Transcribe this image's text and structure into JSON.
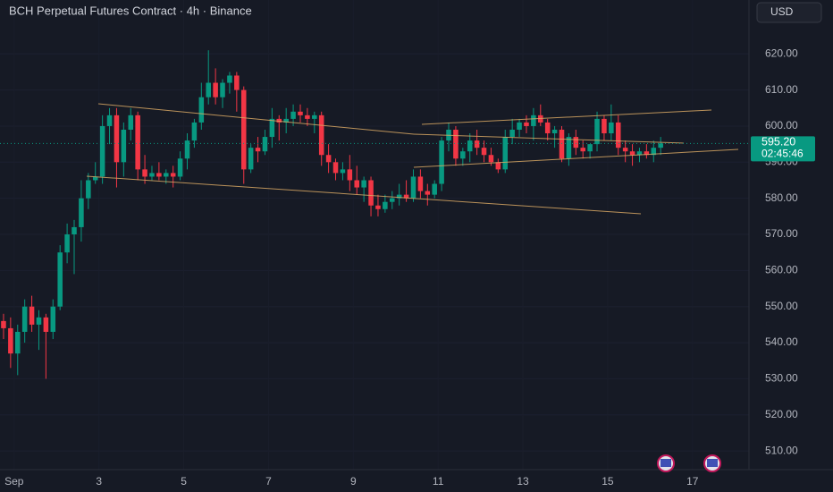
{
  "chart_data": {
    "type": "candlestick",
    "title": "BCH Perpetual Futures Contract · 4h · Binance",
    "currency": "USD",
    "up_color": "#089981",
    "down_color": "#f23645",
    "open": [
      546,
      544,
      537,
      543,
      550,
      545,
      547,
      543,
      550,
      565,
      570,
      572,
      580,
      585,
      586,
      600,
      603,
      590,
      599,
      603,
      588,
      586,
      587,
      586,
      587,
      586,
      591,
      596,
      601,
      608,
      612,
      608,
      612,
      614,
      610,
      588,
      594,
      593,
      597,
      602,
      601,
      602,
      604,
      603,
      602,
      603,
      592,
      590,
      587,
      588,
      585,
      583,
      585,
      578,
      577,
      579,
      580,
      581,
      580,
      586,
      582,
      581,
      584,
      596,
      599,
      591,
      593,
      596,
      594,
      592,
      590,
      588,
      597,
      599,
      601,
      600,
      603,
      601,
      598,
      599,
      591,
      597,
      594,
      593,
      595,
      602,
      598,
      601,
      594,
      593,
      592,
      593,
      592,
      594
    ],
    "high": [
      548,
      547,
      545,
      552,
      553,
      549,
      548,
      552,
      567,
      573,
      574,
      585,
      587,
      590,
      603,
      605,
      605,
      601,
      605,
      604,
      592,
      589,
      590,
      588,
      589,
      593,
      598,
      602,
      612,
      621,
      616,
      613,
      615,
      615,
      611,
      595,
      597,
      599,
      605,
      603,
      605,
      606,
      606,
      605,
      604,
      604,
      595,
      591,
      590,
      592,
      589,
      586,
      586,
      581,
      581,
      582,
      584,
      585,
      588,
      588,
      584,
      585,
      597,
      601,
      600,
      594,
      598,
      599,
      596,
      594,
      591,
      599,
      602,
      602,
      603,
      605,
      606,
      602,
      600,
      600,
      598,
      599,
      596,
      595,
      604,
      603,
      606,
      603,
      596,
      595,
      594,
      595,
      596,
      597
    ],
    "low": [
      541,
      533,
      531,
      540,
      543,
      538,
      530,
      541,
      549,
      562,
      559,
      568,
      577,
      584,
      584,
      595,
      583,
      586,
      596,
      585,
      584,
      585,
      585,
      584,
      583,
      585,
      588,
      594,
      599,
      606,
      606,
      605,
      609,
      604,
      584,
      587,
      590,
      592,
      594,
      596,
      598,
      600,
      601,
      600,
      598,
      589,
      587,
      585,
      585,
      582,
      581,
      579,
      575,
      575,
      576,
      577,
      578,
      579,
      579,
      580,
      578,
      580,
      582,
      593,
      589,
      589,
      590,
      592,
      590,
      589,
      587,
      587,
      595,
      597,
      598,
      596,
      600,
      596,
      594,
      590,
      589,
      592,
      591,
      591,
      593,
      596,
      596,
      592,
      590,
      589,
      590,
      591,
      590,
      592
    ],
    "close": [
      544,
      537,
      543,
      550,
      545,
      547,
      543,
      550,
      565,
      570,
      572,
      580,
      585,
      586,
      600,
      603,
      590,
      599,
      603,
      588,
      586,
      587,
      586,
      587,
      586,
      591,
      596,
      601,
      608,
      612,
      608,
      612,
      614,
      610,
      588,
      594,
      593,
      597,
      602,
      601,
      602,
      604,
      603,
      602,
      603,
      592,
      590,
      587,
      588,
      585,
      583,
      585,
      578,
      577,
      579,
      580,
      581,
      580,
      586,
      582,
      581,
      584,
      596,
      599,
      591,
      593,
      596,
      594,
      592,
      590,
      588,
      597,
      599,
      601,
      600,
      603,
      601,
      598,
      599,
      591,
      597,
      594,
      593,
      595,
      602,
      598,
      601,
      594,
      593,
      592,
      593,
      592,
      594,
      595.2
    ],
    "current_price": {
      "value": 595.2,
      "label": "595.20"
    },
    "countdown": "02:45:46",
    "xlim": [
      -0.5,
      105.5
    ],
    "xticks": [
      {
        "value": 1.5,
        "label": "Sep"
      },
      {
        "value": 13.5,
        "label": "3"
      },
      {
        "value": 25.5,
        "label": "5"
      },
      {
        "value": 37.5,
        "label": "7"
      },
      {
        "value": 49.5,
        "label": "9"
      },
      {
        "value": 61.5,
        "label": "11"
      },
      {
        "value": 73.5,
        "label": "13"
      },
      {
        "value": 85.5,
        "label": "15"
      },
      {
        "value": 97.5,
        "label": "17"
      }
    ],
    "ylim": [
      504.83,
      634.93
    ],
    "yticks": [
      {
        "value": 510,
        "label": "510.00"
      },
      {
        "value": 520,
        "label": "520.00"
      },
      {
        "value": 530,
        "label": "530.00"
      },
      {
        "value": 540,
        "label": "540.00"
      },
      {
        "value": 550,
        "label": "550.00"
      },
      {
        "value": 560,
        "label": "560.00"
      },
      {
        "value": 570,
        "label": "570.00"
      },
      {
        "value": 580,
        "label": "580.00"
      },
      {
        "value": 590,
        "label": "590.00"
      },
      {
        "value": 600,
        "label": "600.00"
      },
      {
        "value": 610,
        "label": "610.00"
      },
      {
        "value": 620,
        "label": "620.00"
      }
    ]
  }
}
